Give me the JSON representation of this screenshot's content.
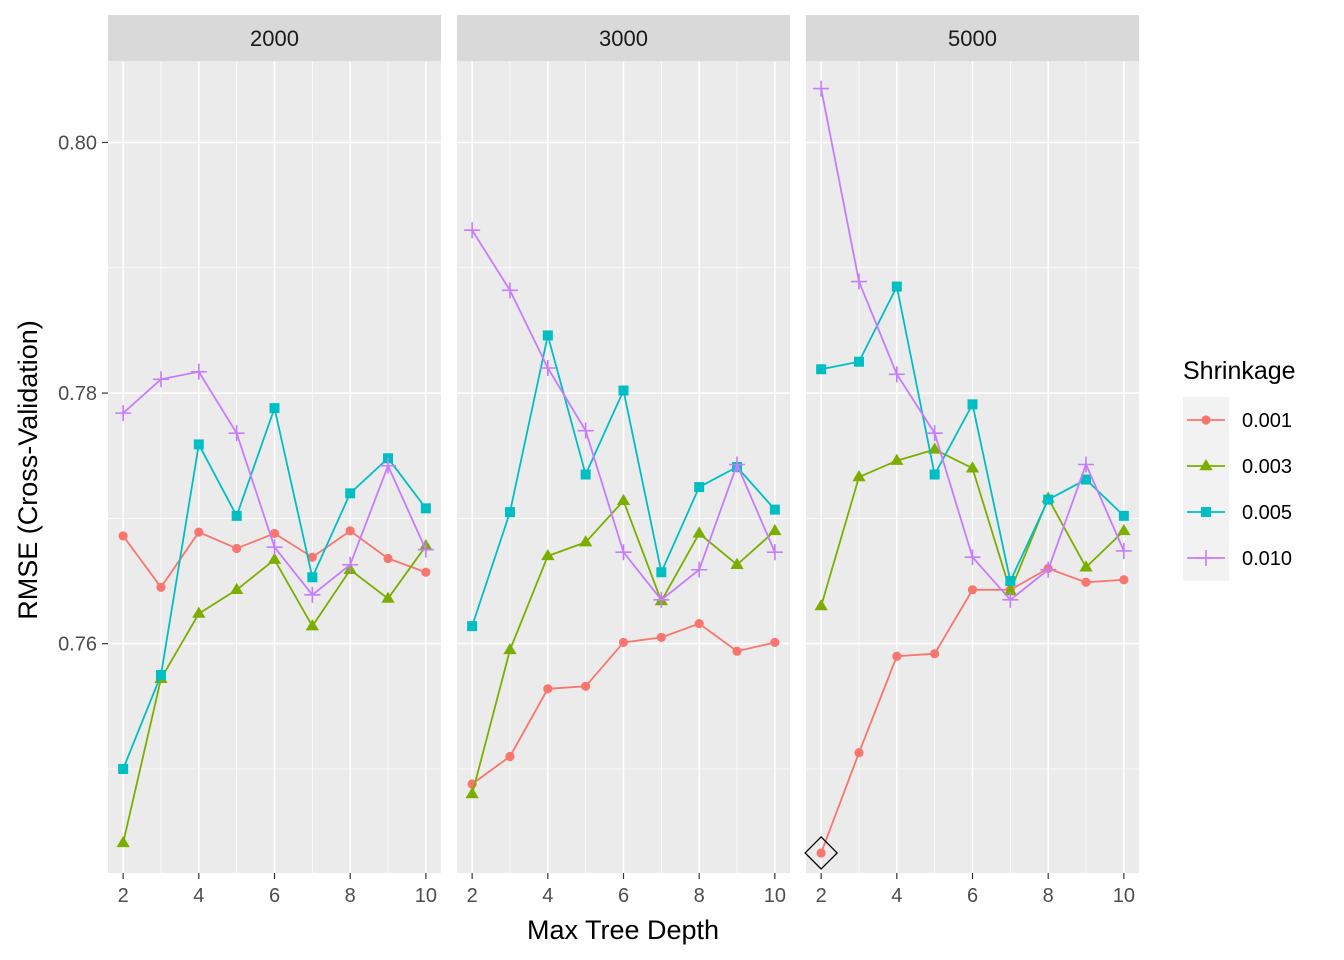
{
  "chart_data": {
    "type": "line",
    "facet_variable_values": [
      "2000",
      "3000",
      "5000"
    ],
    "xlabel": "Max Tree Depth",
    "ylabel": "RMSE (Cross-Validation)",
    "legend_title": "Shrinkage",
    "legend_position": "right",
    "x": [
      2,
      3,
      4,
      5,
      6,
      7,
      8,
      9,
      10
    ],
    "x_ticks": [
      2,
      4,
      6,
      8,
      10
    ],
    "x_range": [
      1.6,
      10.4
    ],
    "y_ticks": [
      0.76,
      0.78,
      0.8
    ],
    "y_tick_labels": [
      "0.76",
      "0.78",
      "0.80"
    ],
    "y_range": [
      0.7417,
      0.8065
    ],
    "grid": true,
    "panels": [
      {
        "label": "2000",
        "series": [
          {
            "name": "0.001",
            "values": [
              0.7686,
              0.7645,
              0.7689,
              0.7676,
              0.7688,
              0.7669,
              0.769,
              0.7668,
              0.7657
            ]
          },
          {
            "name": "0.003",
            "values": [
              0.7441,
              0.7572,
              0.7624,
              0.7643,
              0.7667,
              0.7614,
              0.7659,
              0.7636,
              0.7678
            ]
          },
          {
            "name": "0.005",
            "values": [
              0.75,
              0.7575,
              0.7759,
              0.7702,
              0.7788,
              0.7653,
              0.772,
              0.7748,
              0.7708
            ]
          },
          {
            "name": "0.010",
            "values": [
              0.7784,
              0.7811,
              0.7817,
              0.7768,
              0.7677,
              0.7639,
              0.7663,
              0.7742,
              0.7675
            ]
          }
        ]
      },
      {
        "label": "3000",
        "series": [
          {
            "name": "0.001",
            "values": [
              0.7488,
              0.751,
              0.7564,
              0.7566,
              0.7601,
              0.7605,
              0.7616,
              0.7594,
              0.7601
            ]
          },
          {
            "name": "0.003",
            "values": [
              0.748,
              0.7595,
              0.767,
              0.7681,
              0.7714,
              0.7634,
              0.7688,
              0.7663,
              0.769
            ]
          },
          {
            "name": "0.005",
            "values": [
              0.7614,
              0.7705,
              0.7846,
              0.7735,
              0.7802,
              0.7657,
              0.7725,
              0.7741,
              0.7707
            ]
          },
          {
            "name": "0.010",
            "values": [
              0.793,
              0.7882,
              0.782,
              0.777,
              0.7673,
              0.7635,
              0.7659,
              0.7743,
              0.7673
            ]
          }
        ]
      },
      {
        "label": "5000",
        "series": [
          {
            "name": "0.001",
            "values": [
              0.7433,
              0.7513,
              0.759,
              0.7592,
              0.7643,
              0.7643,
              0.766,
              0.7649,
              0.7651
            ]
          },
          {
            "name": "0.003",
            "values": [
              0.763,
              0.7733,
              0.7746,
              0.7755,
              0.774,
              0.7642,
              0.7716,
              0.7661,
              0.769
            ]
          },
          {
            "name": "0.005",
            "values": [
              0.7819,
              0.7825,
              0.7885,
              0.7735,
              0.7791,
              0.765,
              0.7715,
              0.7731,
              0.7702
            ]
          },
          {
            "name": "0.010",
            "values": [
              0.8043,
              0.7889,
              0.7815,
              0.7768,
              0.7669,
              0.7635,
              0.7659,
              0.7743,
              0.7674
            ]
          }
        ]
      }
    ],
    "series_styles": [
      {
        "name": "0.001",
        "color": "#F8766D",
        "shape": "circle"
      },
      {
        "name": "0.003",
        "color": "#7CAE00",
        "shape": "triangle"
      },
      {
        "name": "0.005",
        "color": "#00BFC4",
        "shape": "square"
      },
      {
        "name": "0.010",
        "color": "#C77CFF",
        "shape": "plus"
      }
    ],
    "highlight": {
      "panel": "5000",
      "x": 2,
      "y": 0.7433,
      "shape": "diamond"
    }
  }
}
